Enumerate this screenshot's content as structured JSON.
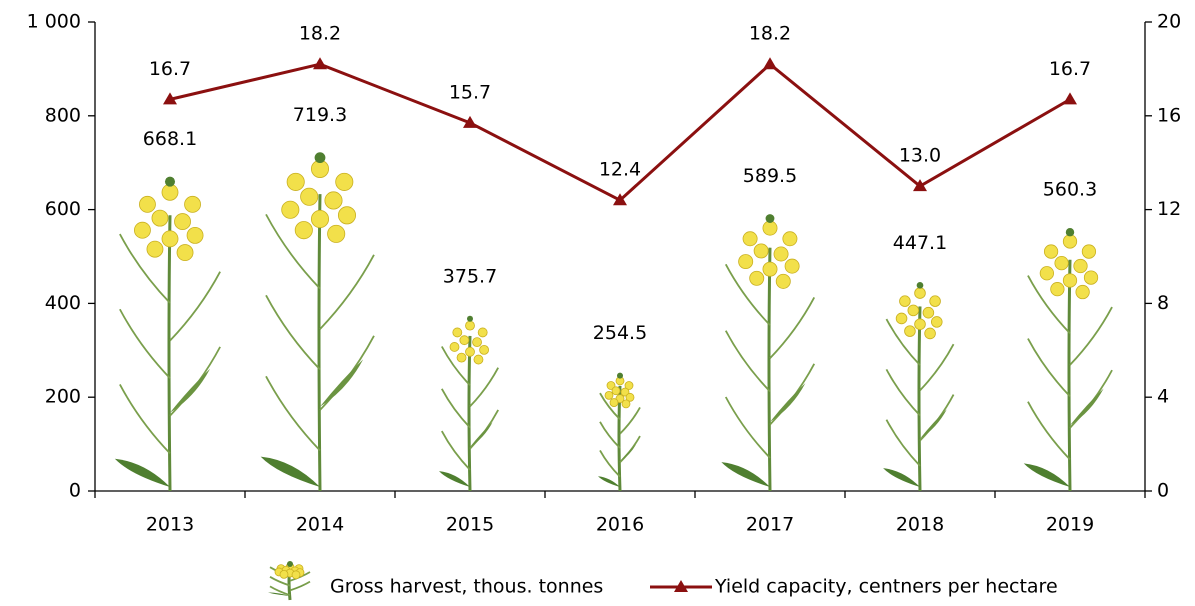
{
  "chart_data": {
    "type": "bar",
    "categories": [
      "2013",
      "2014",
      "2015",
      "2016",
      "2017",
      "2018",
      "2019"
    ],
    "series": [
      {
        "name": "Gross harvest, thous. tonnes",
        "color": "#f2e04a",
        "values": [
          668.1,
          719.3,
          375.7,
          254.5,
          589.5,
          447.1,
          560.3
        ]
      },
      {
        "name": "Yield capacity, centners per hectare",
        "color": "#8b1010",
        "type": "line",
        "axis": "y2",
        "values": [
          16.7,
          18.2,
          15.7,
          12.4,
          18.2,
          13.0,
          16.7
        ],
        "value_labels": [
          "16.7",
          "18.2",
          "15.7",
          "12.4",
          "18.2",
          "13.0",
          "16.7"
        ]
      }
    ],
    "ylim": [
      0,
      1000
    ],
    "yticks": [
      0,
      200,
      400,
      600,
      800,
      {
        "value": 1000,
        "label": "1 000"
      }
    ],
    "y2lim": [
      0,
      20
    ],
    "y2ticks": [
      0,
      4,
      8,
      12,
      16,
      20
    ]
  }
}
